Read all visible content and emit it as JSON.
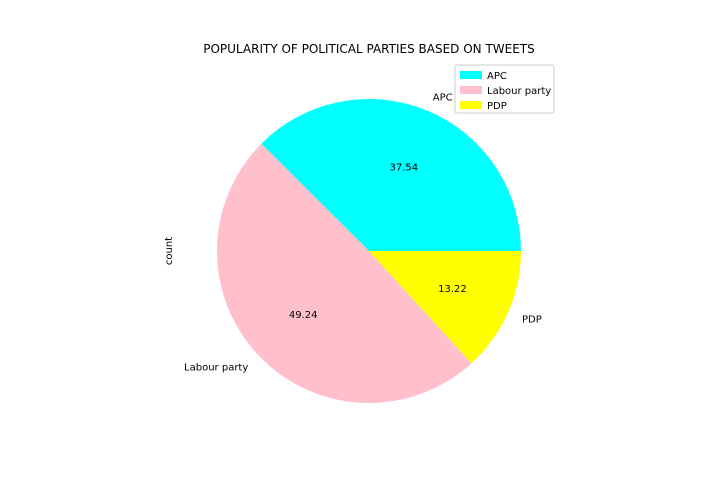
{
  "chart_data": {
    "type": "pie",
    "title": "POPULARITY OF POLITICAL PARTIES BASED ON TWEETS",
    "ylabel": "count",
    "categories": [
      "APC",
      "Labour party",
      "PDP"
    ],
    "values": [
      37.54,
      49.24,
      13.22
    ],
    "percent_labels": [
      "37.54",
      "49.24",
      "13.22"
    ],
    "colors": [
      "#00ffff",
      "#ffc0cb",
      "#ffff00"
    ],
    "start_angle_deg": 0,
    "direction": "counterclockwise",
    "legend": {
      "placement": "upper-right",
      "entries": [
        "APC",
        "Labour party",
        "PDP"
      ]
    }
  }
}
